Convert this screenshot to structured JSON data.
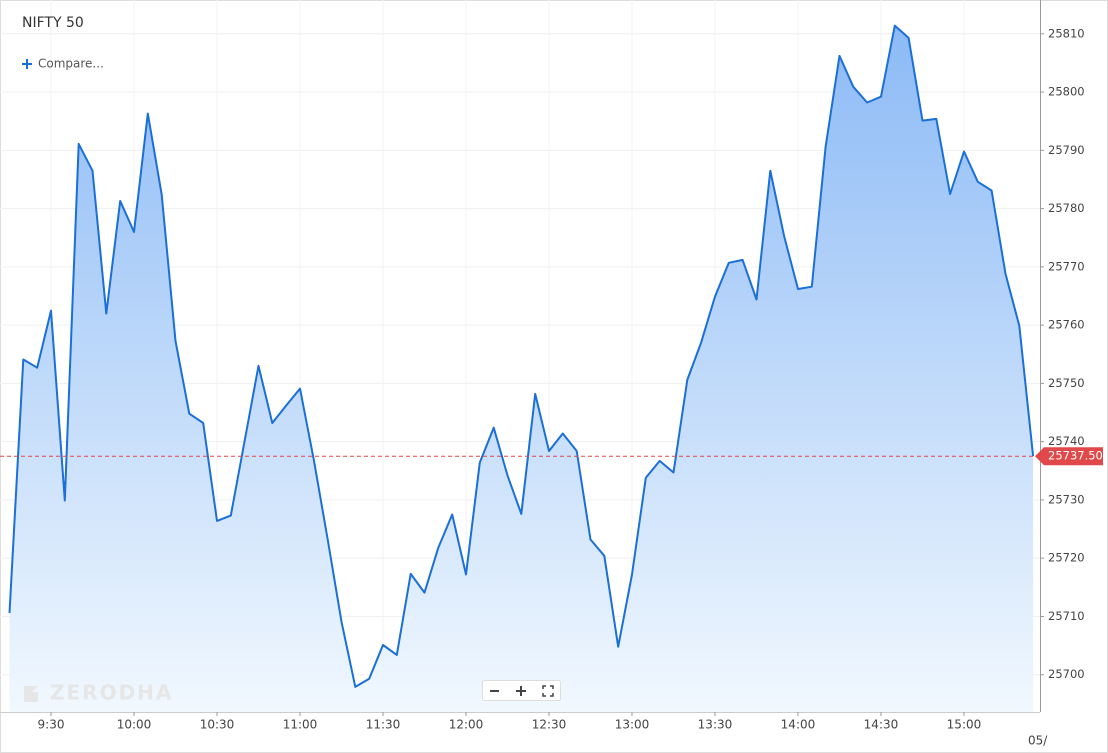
{
  "chart_data": {
    "type": "area",
    "title": "NIFTY 50",
    "compare_label": "Compare...",
    "watermark": "ZERODHA",
    "date_label": "05/",
    "color": "#1a6fd8",
    "fill_top": "#8cbaf6",
    "fill_bottom": "#f1f8fe",
    "grid": true,
    "categories": [
      null,
      null,
      null,
      "9:30",
      null,
      null,
      null,
      null,
      null,
      "10:00",
      null,
      null,
      null,
      null,
      null,
      "10:30",
      null,
      null,
      null,
      null,
      null,
      "11:00",
      null,
      null,
      null,
      null,
      null,
      "11:30",
      null,
      null,
      null,
      null,
      null,
      "12:00",
      null,
      null,
      null,
      null,
      null,
      "12:30",
      null,
      null,
      null,
      null,
      null,
      "13:00",
      null,
      null,
      null,
      null,
      null,
      "13:30",
      null,
      null,
      null,
      null,
      null,
      "14:00",
      null,
      null,
      null,
      null,
      null,
      "14:30",
      null,
      null,
      null,
      null,
      null,
      "15:00",
      null,
      null,
      null,
      null,
      null
    ],
    "values": [
      25710.6,
      25754.1,
      25752.7,
      25762.5,
      25729.9,
      25791.1,
      25786.5,
      25762.0,
      25781.3,
      25776.0,
      25796.3,
      25782.4,
      25757.3,
      25744.8,
      25743.2,
      25726.4,
      25727.3,
      25740.2,
      25753.0,
      25743.2,
      25746.2,
      25749.1,
      25736.9,
      25723.2,
      25709.1,
      25697.9,
      25699.3,
      25705.1,
      25703.4,
      25717.3,
      25714.1,
      25721.8,
      25727.5,
      25717.2,
      25736.4,
      25742.4,
      25734.2,
      25727.6,
      25748.2,
      25738.4,
      25741.4,
      25738.4,
      25723.2,
      25720.4,
      25704.8,
      25717.2,
      25733.8,
      25736.7,
      25734.7,
      25750.6,
      25757.0,
      25764.9,
      25770.7,
      25771.2,
      25764.4,
      25786.5,
      25775.3,
      25766.2,
      25766.6,
      25790.6,
      25806.2,
      25800.9,
      25798.2,
      25799.2,
      25811.4,
      25809.3,
      25795.1,
      25795.4,
      25782.5,
      25789.8,
      25784.6,
      25783.1,
      25768.8,
      25759.9,
      25737.5
    ],
    "ylim": [
      25693.6,
      25815.8
    ],
    "yticks": [
      25700,
      25710,
      25720,
      25730,
      25740,
      25750,
      25760,
      25770,
      25780,
      25790,
      25800,
      25810
    ],
    "last_price": {
      "value": 25737.5,
      "label": "25737.50"
    },
    "last_price_color": "#e0484a"
  }
}
